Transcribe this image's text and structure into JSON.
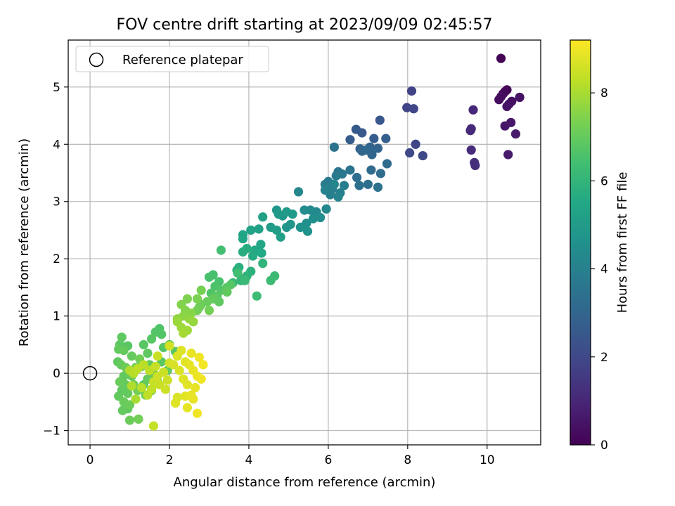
{
  "chart_data": {
    "type": "scatter",
    "title": "FOV centre drift starting at 2023/09/09 02:45:57",
    "xlabel": "Angular distance from reference (arcmin)",
    "ylabel": "Rotation from reference (arcmin)",
    "xlim": [
      -0.55,
      11.35
    ],
    "ylim": [
      -1.25,
      5.82
    ],
    "xticks": [
      0,
      2,
      4,
      6,
      8,
      10
    ],
    "xtick_labels": [
      "0",
      "2",
      "4",
      "6",
      "8",
      "10"
    ],
    "yticks": [
      -1,
      0,
      1,
      2,
      3,
      4,
      5
    ],
    "ytick_labels": [
      "−1",
      "0",
      "1",
      "2",
      "3",
      "4",
      "5"
    ],
    "grid": true,
    "legend": {
      "position": "top-left",
      "entries": [
        "Reference platepar"
      ]
    },
    "reference_point": {
      "x": 0,
      "y": 0,
      "label": "Reference platepar"
    },
    "colorbar": {
      "label": "Hours from first FF file",
      "range": [
        0,
        9.2
      ],
      "ticks": [
        0,
        2,
        4,
        6,
        8
      ],
      "tick_labels": [
        "0",
        "2",
        "4",
        "6",
        "8"
      ],
      "colormap": "viridis"
    },
    "points": [
      [
        10.35,
        5.5,
        0.05
      ],
      [
        10.5,
        4.95,
        0.1
      ],
      [
        10.45,
        4.92,
        0.15
      ],
      [
        10.4,
        4.88,
        0.2
      ],
      [
        10.35,
        4.83,
        0.25
      ],
      [
        10.3,
        4.78,
        0.3
      ],
      [
        10.55,
        4.7,
        0.35
      ],
      [
        10.62,
        4.75,
        0.4
      ],
      [
        10.82,
        4.82,
        0.45
      ],
      [
        10.5,
        4.66,
        0.5
      ],
      [
        10.45,
        4.32,
        0.55
      ],
      [
        10.6,
        4.38,
        0.6
      ],
      [
        10.72,
        4.18,
        0.65
      ],
      [
        10.53,
        3.82,
        0.7
      ],
      [
        9.65,
        4.6,
        1.0
      ],
      [
        9.6,
        4.27,
        1.05
      ],
      [
        9.58,
        4.24,
        1.1
      ],
      [
        9.6,
        3.9,
        1.15
      ],
      [
        9.68,
        3.68,
        1.2
      ],
      [
        9.7,
        3.63,
        1.25
      ],
      [
        8.1,
        4.93,
        1.8
      ],
      [
        7.98,
        4.64,
        1.85
      ],
      [
        8.15,
        4.62,
        1.9
      ],
      [
        8.2,
        4.0,
        1.95
      ],
      [
        8.05,
        3.85,
        2.0
      ],
      [
        8.38,
        3.8,
        2.05
      ],
      [
        7.3,
        4.42,
        2.5
      ],
      [
        6.85,
        4.2,
        2.55
      ],
      [
        6.7,
        4.26,
        2.6
      ],
      [
        6.55,
        4.08,
        2.65
      ],
      [
        7.15,
        4.1,
        2.7
      ],
      [
        7.45,
        4.1,
        2.75
      ],
      [
        6.8,
        3.92,
        2.8
      ],
      [
        6.95,
        3.9,
        2.85
      ],
      [
        7.05,
        3.95,
        2.9
      ],
      [
        7.25,
        3.93,
        2.95
      ],
      [
        7.1,
        3.82,
        3.0
      ],
      [
        6.85,
        3.88,
        3.05
      ],
      [
        7.0,
        3.9,
        3.1
      ],
      [
        7.08,
        3.55,
        3.15
      ],
      [
        7.48,
        3.66,
        3.2
      ],
      [
        7.32,
        3.49,
        3.25
      ],
      [
        6.72,
        3.42,
        3.3
      ],
      [
        7.0,
        3.3,
        3.35
      ],
      [
        6.78,
        3.28,
        3.4
      ],
      [
        7.25,
        3.25,
        3.45
      ],
      [
        6.15,
        3.95,
        3.5
      ],
      [
        6.55,
        3.55,
        3.55
      ],
      [
        6.25,
        3.52,
        3.6
      ],
      [
        6.35,
        3.48,
        3.65
      ],
      [
        6.2,
        3.45,
        3.7
      ],
      [
        6.0,
        3.35,
        3.75
      ],
      [
        5.92,
        3.3,
        3.8
      ],
      [
        6.1,
        3.22,
        3.85
      ],
      [
        6.4,
        3.28,
        3.9
      ],
      [
        6.3,
        3.15,
        3.95
      ],
      [
        6.05,
        3.12,
        4.0
      ],
      [
        6.25,
        3.08,
        4.05
      ],
      [
        5.92,
        3.2,
        4.1
      ],
      [
        6.15,
        3.3,
        4.15
      ],
      [
        5.25,
        3.17,
        4.2
      ],
      [
        5.95,
        2.87,
        4.25
      ],
      [
        5.7,
        2.82,
        4.3
      ],
      [
        5.55,
        2.85,
        4.35
      ],
      [
        5.4,
        2.85,
        4.4
      ],
      [
        5.8,
        2.72,
        4.45
      ],
      [
        5.62,
        2.7,
        4.5
      ],
      [
        5.45,
        2.62,
        4.55
      ],
      [
        5.3,
        2.55,
        4.6
      ],
      [
        5.48,
        2.48,
        4.65
      ],
      [
        5.05,
        2.6,
        4.7
      ],
      [
        4.95,
        2.55,
        4.75
      ],
      [
        4.85,
        2.75,
        4.8
      ],
      [
        4.7,
        2.85,
        4.85
      ],
      [
        4.75,
        2.78,
        4.9
      ],
      [
        4.95,
        2.82,
        4.95
      ],
      [
        5.1,
        2.78,
        5.0
      ],
      [
        4.55,
        2.55,
        5.05
      ],
      [
        4.7,
        2.5,
        5.1
      ],
      [
        4.8,
        2.38,
        5.15
      ],
      [
        4.35,
        2.73,
        5.2
      ],
      [
        4.25,
        2.52,
        5.25
      ],
      [
        4.05,
        2.5,
        5.3
      ],
      [
        3.85,
        2.42,
        5.35
      ],
      [
        3.85,
        2.35,
        5.4
      ],
      [
        4.3,
        2.25,
        5.45
      ],
      [
        4.15,
        2.15,
        5.5
      ],
      [
        4.32,
        2.1,
        5.55
      ],
      [
        4.1,
        2.05,
        5.6
      ],
      [
        3.95,
        2.18,
        5.65
      ],
      [
        3.85,
        2.12,
        5.7
      ],
      [
        3.7,
        1.8,
        5.75
      ],
      [
        3.75,
        1.85,
        5.8
      ],
      [
        4.05,
        1.78,
        5.85
      ],
      [
        3.95,
        1.7,
        5.9
      ],
      [
        4.35,
        1.92,
        5.95
      ],
      [
        3.88,
        1.65,
        6.0
      ],
      [
        3.8,
        1.62,
        6.05
      ],
      [
        3.6,
        1.58,
        6.1
      ],
      [
        3.9,
        1.62,
        6.15
      ],
      [
        4.65,
        1.7,
        6.2
      ],
      [
        4.55,
        1.62,
        6.25
      ],
      [
        4.2,
        1.35,
        6.3
      ],
      [
        3.72,
        1.75,
        6.35
      ],
      [
        3.3,
        2.15,
        6.4
      ],
      [
        3.1,
        1.72,
        6.45
      ],
      [
        3.0,
        1.68,
        6.5
      ],
      [
        3.25,
        1.6,
        6.55
      ],
      [
        3.15,
        1.52,
        6.6
      ],
      [
        3.05,
        1.4,
        6.65
      ],
      [
        3.3,
        1.45,
        6.7
      ],
      [
        3.55,
        1.55,
        6.75
      ],
      [
        3.45,
        1.5,
        6.8
      ],
      [
        3.2,
        1.35,
        6.85
      ],
      [
        3.25,
        1.25,
        6.9
      ],
      [
        3.45,
        1.42,
        6.95
      ],
      [
        3.1,
        1.3,
        7.0
      ],
      [
        2.95,
        1.25,
        7.05
      ],
      [
        2.8,
        1.2,
        7.1
      ],
      [
        2.75,
        1.15,
        7.15
      ],
      [
        2.7,
        1.1,
        7.2
      ],
      [
        3.0,
        1.1,
        7.25
      ],
      [
        2.8,
        1.45,
        7.3
      ],
      [
        2.7,
        1.3,
        7.35
      ],
      [
        2.45,
        1.3,
        7.4
      ],
      [
        2.3,
        1.2,
        7.45
      ],
      [
        2.4,
        1.1,
        7.5
      ],
      [
        2.55,
        1.05,
        7.55
      ],
      [
        2.35,
        1.0,
        7.6
      ],
      [
        2.2,
        0.95,
        7.65
      ],
      [
        2.5,
        0.95,
        7.7
      ],
      [
        2.6,
        0.9,
        7.75
      ],
      [
        2.2,
        0.9,
        7.8
      ],
      [
        2.3,
        0.8,
        7.85
      ],
      [
        2.45,
        0.75,
        7.9
      ],
      [
        2.35,
        0.7,
        7.95
      ]
    ],
    "cluster_points": [
      [
        0.8,
        0.63,
        6.9
      ],
      [
        0.75,
        0.5,
        6.85
      ],
      [
        0.72,
        0.42,
        6.95
      ],
      [
        0.85,
        0.4,
        7.0
      ],
      [
        0.95,
        0.48,
        6.8
      ],
      [
        0.7,
        0.2,
        6.9
      ],
      [
        0.78,
        0.15,
        7.0
      ],
      [
        0.9,
        0.1,
        7.1
      ],
      [
        0.85,
        -0.05,
        6.95
      ],
      [
        0.75,
        -0.15,
        7.05
      ],
      [
        0.9,
        -0.2,
        7.0
      ],
      [
        0.8,
        -0.3,
        6.9
      ],
      [
        0.95,
        -0.35,
        7.0
      ],
      [
        0.72,
        -0.4,
        6.95
      ],
      [
        0.85,
        -0.5,
        7.05
      ],
      [
        1.0,
        -0.55,
        7.1
      ],
      [
        0.82,
        -0.65,
        7.0
      ],
      [
        0.95,
        -0.62,
        6.9
      ],
      [
        1.0,
        -0.82,
        7.1
      ],
      [
        1.22,
        -0.8,
        7.2
      ],
      [
        1.05,
        -0.05,
        7.1
      ],
      [
        1.15,
        0.1,
        7.15
      ],
      [
        1.25,
        0.25,
        7.2
      ],
      [
        1.05,
        0.3,
        7.0
      ],
      [
        1.1,
        -0.2,
        7.15
      ],
      [
        1.2,
        -0.3,
        7.2
      ],
      [
        1.35,
        0.5,
        6.8
      ],
      [
        1.45,
        0.35,
        6.9
      ],
      [
        1.55,
        0.6,
        6.8
      ],
      [
        1.65,
        0.72,
        6.7
      ],
      [
        1.75,
        0.78,
        6.65
      ],
      [
        1.8,
        0.68,
        6.7
      ],
      [
        1.5,
        0.15,
        6.9
      ],
      [
        1.6,
        0.0,
        7.0
      ],
      [
        1.45,
        -0.1,
        7.0
      ],
      [
        1.35,
        -0.2,
        6.9
      ],
      [
        1.55,
        -0.3,
        7.0
      ],
      [
        1.7,
        -0.15,
        6.95
      ],
      [
        1.4,
        -0.38,
        7.05
      ],
      [
        1.85,
        0.45,
        6.75
      ],
      [
        2.0,
        0.5,
        6.7
      ],
      [
        2.15,
        0.38,
        6.8
      ],
      [
        1.95,
        0.05,
        7.0
      ],
      [
        1.8,
        0.2,
        6.85
      ],
      [
        1.3,
        0.12,
        7.0
      ],
      [
        1.0,
        0.05,
        8.1
      ],
      [
        1.1,
        0.0,
        8.2
      ],
      [
        1.2,
        0.08,
        8.3
      ],
      [
        1.05,
        -0.22,
        8.1
      ],
      [
        1.15,
        -0.45,
        8.0
      ],
      [
        1.3,
        -0.25,
        8.2
      ],
      [
        1.5,
        0.05,
        8.3
      ],
      [
        1.65,
        0.12,
        8.4
      ],
      [
        1.7,
        -0.05,
        8.5
      ],
      [
        1.85,
        0.02,
        8.45
      ],
      [
        1.95,
        -0.12,
        8.5
      ],
      [
        2.0,
        0.18,
        8.55
      ],
      [
        1.55,
        -0.28,
        8.35
      ],
      [
        1.6,
        -0.15,
        8.4
      ],
      [
        1.75,
        -0.2,
        8.45
      ],
      [
        1.9,
        -0.28,
        8.5
      ],
      [
        1.45,
        -0.38,
        8.3
      ],
      [
        1.6,
        -0.92,
        8.4
      ],
      [
        2.2,
        0.3,
        8.7
      ],
      [
        2.3,
        0.4,
        8.75
      ],
      [
        2.1,
        0.15,
        8.65
      ],
      [
        2.25,
        0.05,
        8.7
      ],
      [
        2.4,
        0.2,
        8.8
      ],
      [
        2.35,
        -0.1,
        8.75
      ],
      [
        2.5,
        0.15,
        8.85
      ],
      [
        2.55,
        0.35,
        8.9
      ],
      [
        2.75,
        0.28,
        9.0
      ],
      [
        2.85,
        0.15,
        9.05
      ],
      [
        2.6,
        0.05,
        8.9
      ],
      [
        2.7,
        -0.05,
        8.95
      ],
      [
        2.45,
        -0.2,
        8.8
      ],
      [
        2.65,
        -0.25,
        8.9
      ],
      [
        2.55,
        -0.38,
        8.85
      ],
      [
        2.4,
        -0.4,
        8.8
      ],
      [
        2.2,
        -0.42,
        8.7
      ],
      [
        2.15,
        -0.52,
        8.75
      ],
      [
        2.45,
        -0.6,
        8.85
      ],
      [
        2.6,
        -0.45,
        8.9
      ],
      [
        2.8,
        -0.1,
        9.0
      ],
      [
        2.7,
        -0.7,
        9.0
      ],
      [
        2.0,
        0.48,
        8.6
      ],
      [
        1.7,
        0.3,
        8.45
      ],
      [
        1.35,
        0.15,
        8.25
      ]
    ]
  }
}
